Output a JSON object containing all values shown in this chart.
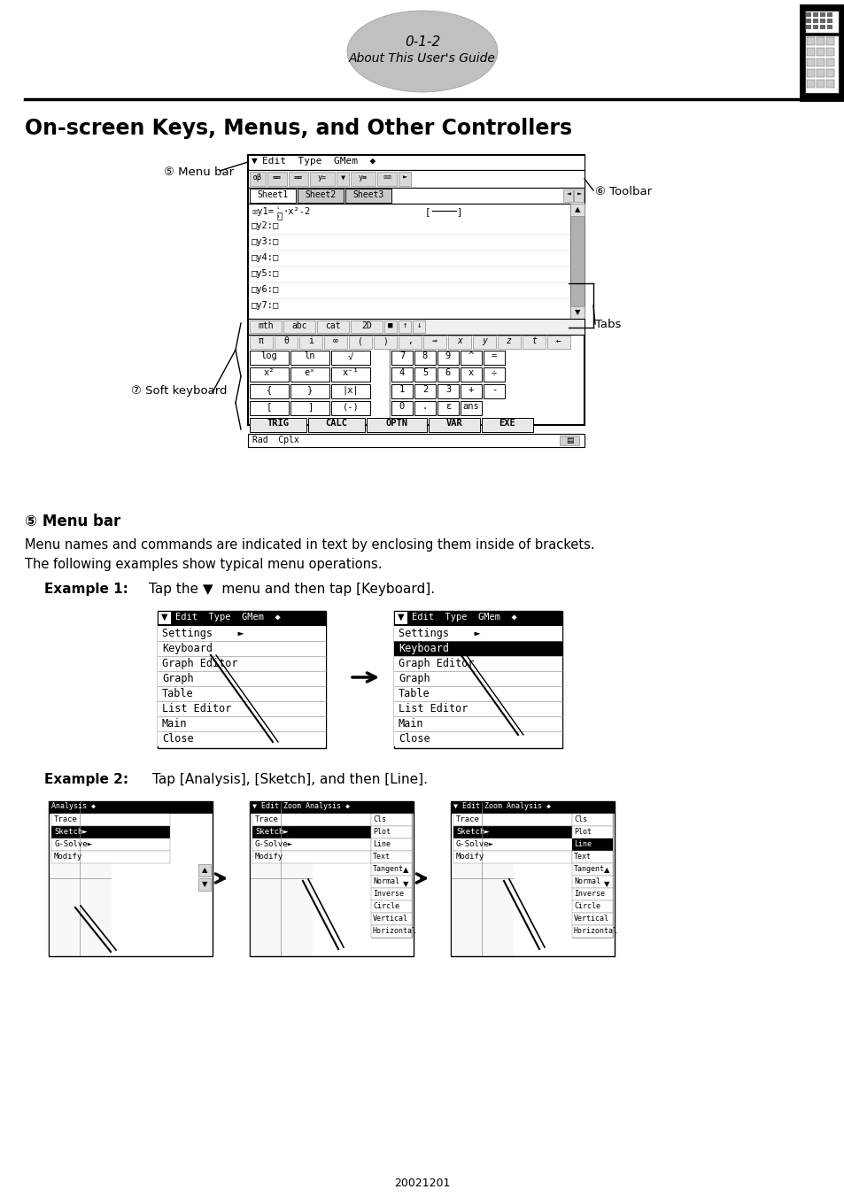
{
  "page_number": "0-1-2",
  "page_subtitle": "About This User's Guide",
  "section_title": "On-screen Keys, Menus, and Other Controllers",
  "label4": "⑤ Menu bar",
  "label5": "⑥ Toolbar",
  "label6": "⑦ Soft keyboard",
  "label_tabs": "Tabs",
  "menubar_heading": "⑤ Menu bar",
  "body_text1": "Menu names and commands are indicated in text by enclosing them inside of brackets.",
  "body_text2": "The following examples show typical menu operations.",
  "example1_label": "Example 1:",
  "example1_text": "Tap the ▼  menu and then tap [Keyboard].",
  "example2_label": "Example 2:",
  "example2_text": "Tap [Analysis], [Sketch], and then [Line].",
  "footer": "20021201",
  "bg_color": "#ffffff"
}
